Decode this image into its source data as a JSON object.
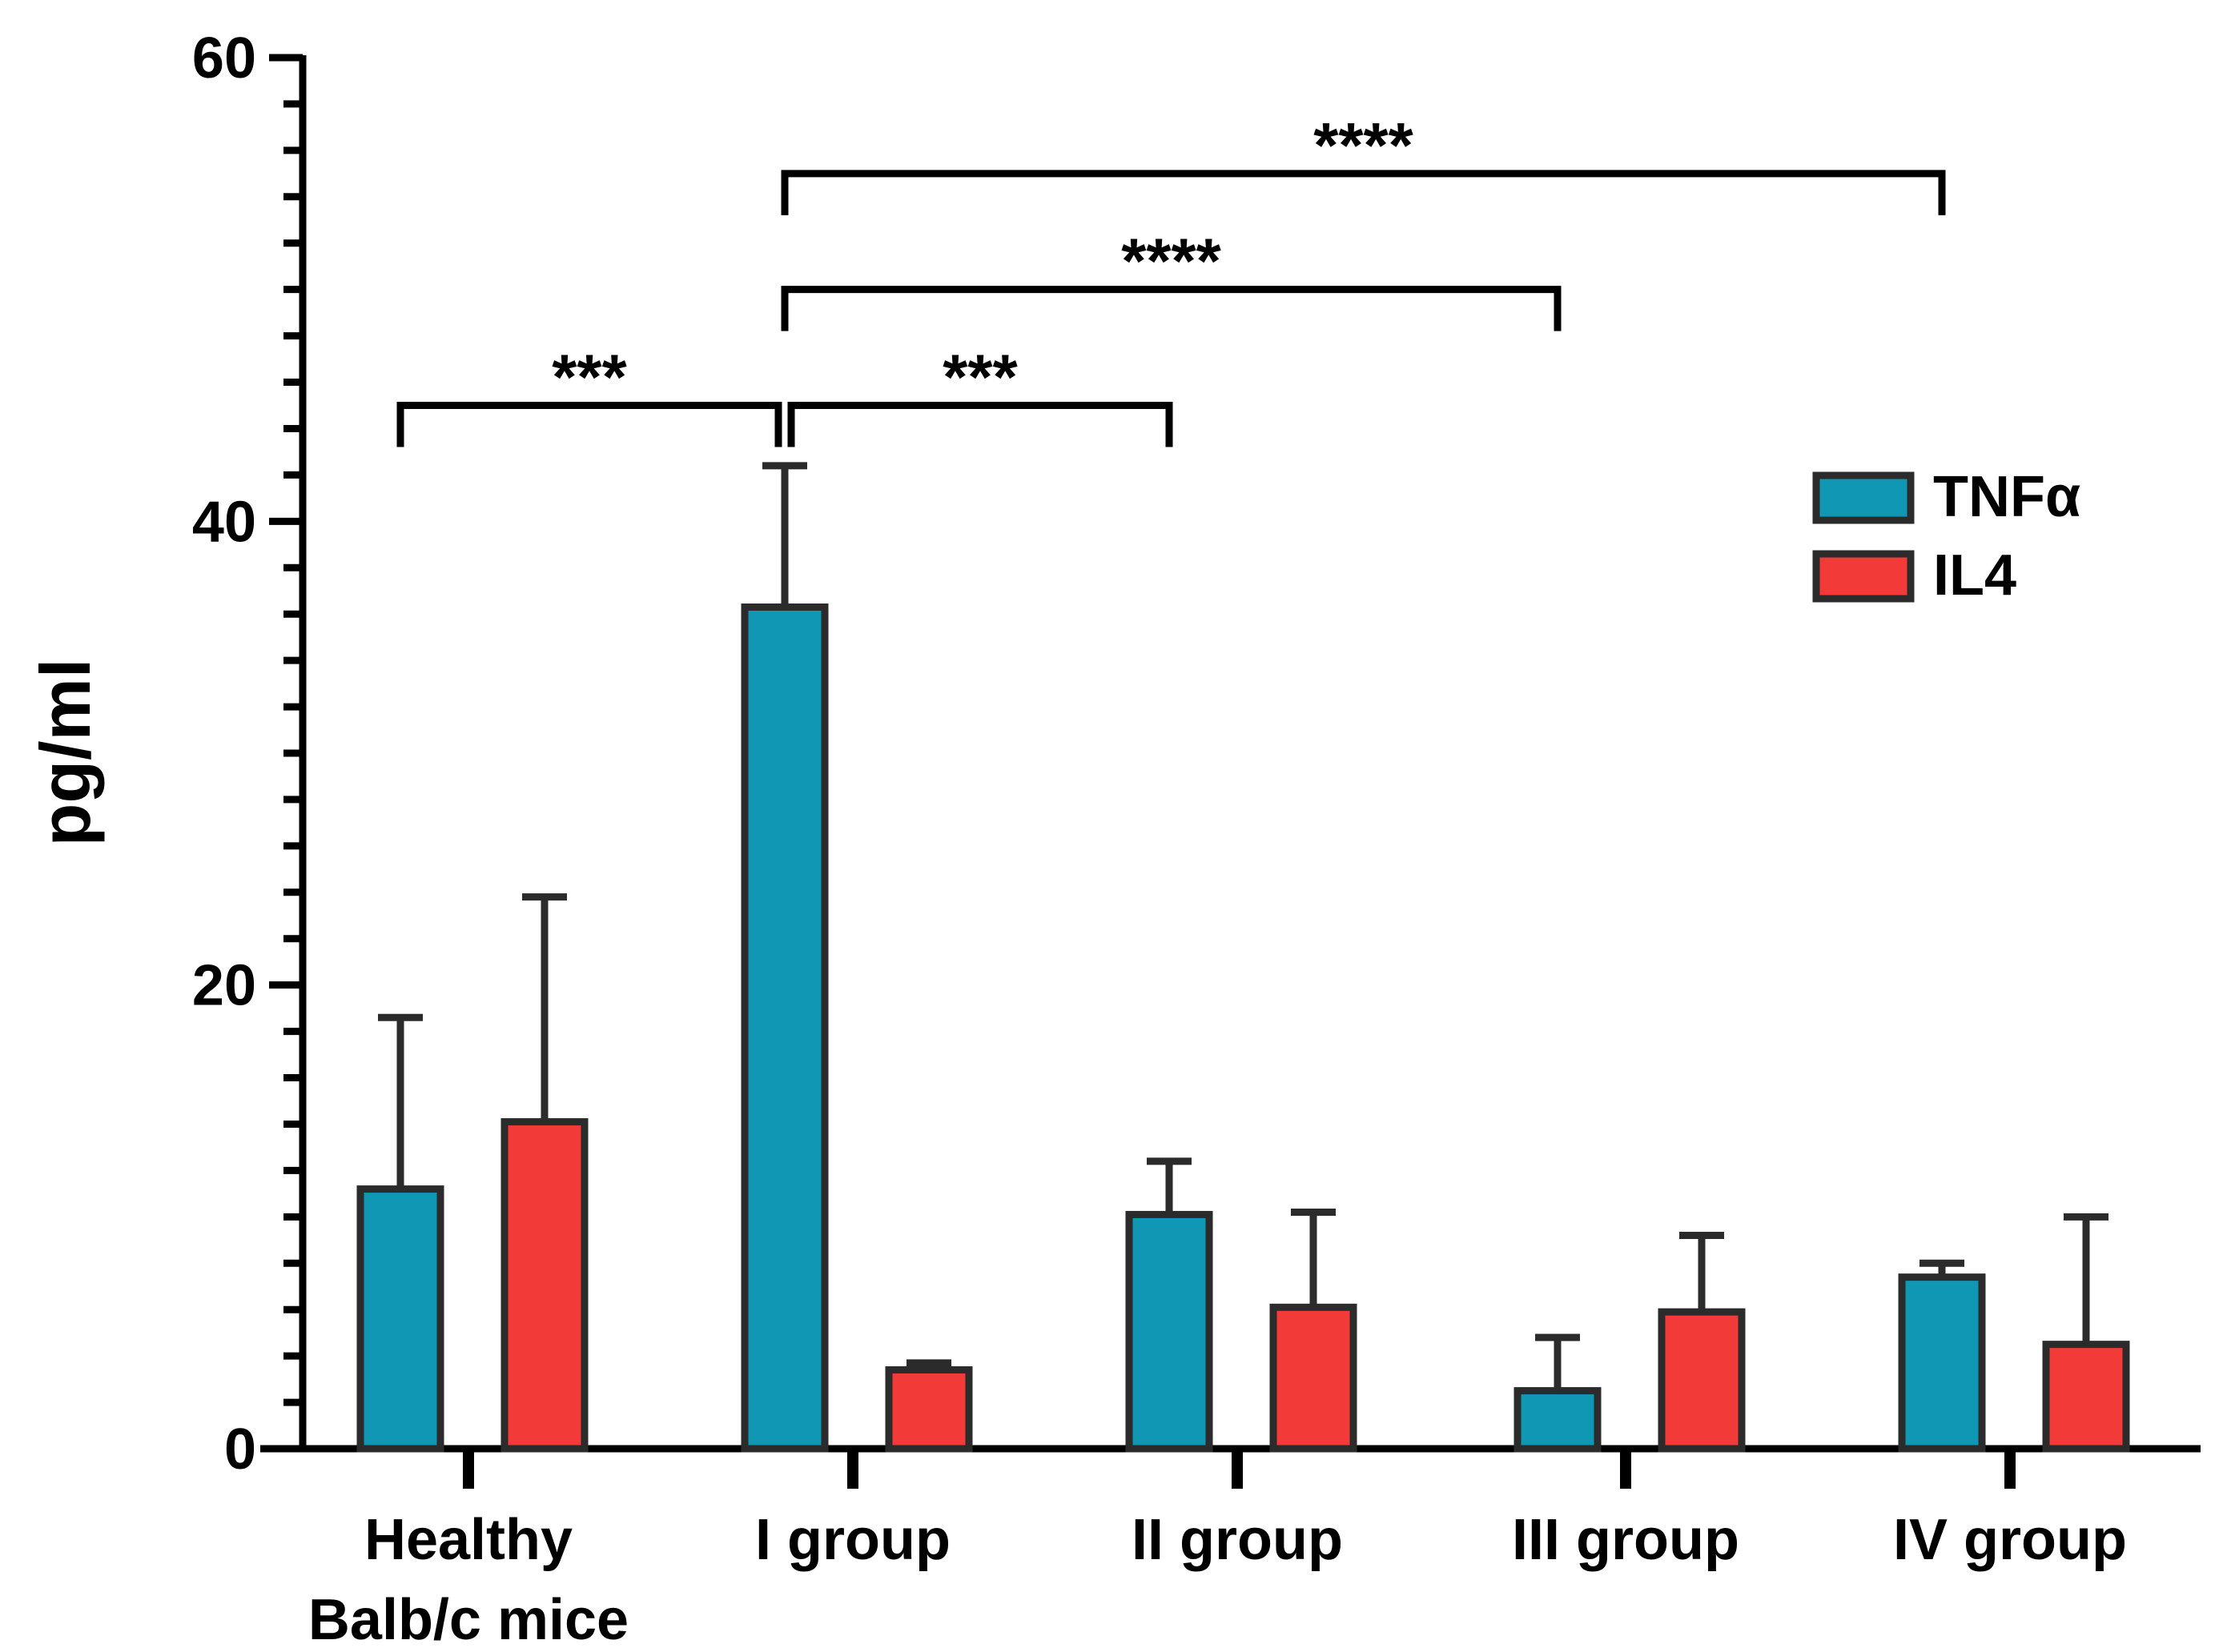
{
  "chart_data": {
    "type": "bar",
    "ylabel": "pg/ml",
    "ylim": [
      0,
      60
    ],
    "yticks": [
      0,
      20,
      40,
      60
    ],
    "categories": [
      [
        "Healthy",
        "Balb/c mice"
      ],
      [
        "I group"
      ],
      [
        "II group"
      ],
      [
        "III group"
      ],
      [
        "IV group"
      ]
    ],
    "series": [
      {
        "name": "TNFα",
        "color": "#0f97b4",
        "values": [
          11.2,
          36.3,
          10.1,
          2.5,
          7.4
        ],
        "errors": [
          7.4,
          6.1,
          2.3,
          2.3,
          0.6
        ]
      },
      {
        "name": "IL4",
        "color": "#f23a38",
        "values": [
          14.1,
          3.4,
          6.1,
          5.9,
          4.5
        ],
        "errors": [
          9.7,
          0.3,
          4.1,
          3.3,
          5.5
        ]
      }
    ],
    "significance": [
      {
        "from": 0,
        "to": 1,
        "label": "***",
        "y": 45
      },
      {
        "from": 1,
        "to": 2,
        "label": "***",
        "y": 45
      },
      {
        "from": 1,
        "to": 3,
        "label": "****",
        "y": 50
      },
      {
        "from": 1,
        "to": 4,
        "label": "****",
        "y": 55
      }
    ],
    "legend": {
      "position": "top-right"
    }
  }
}
